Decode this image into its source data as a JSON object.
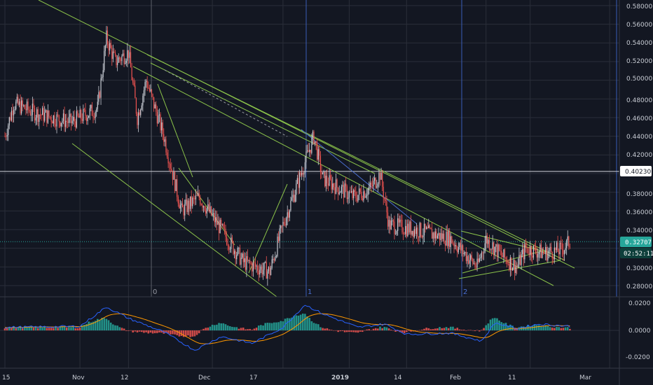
{
  "colors": {
    "background": "#131722",
    "grid": "#2a2e39",
    "up": "#c8ccd4",
    "down": "#ef5350",
    "trendline": "#8bc34a",
    "blue_line": "#3a5db8",
    "macd_line": "#2962ff",
    "signal_line": "#ff9800",
    "hist_pos": "#26a69a",
    "hist_neg": "#ef5350",
    "badge": "#26a69a",
    "badge_dark": "#0e3f3b"
  },
  "price_axis": {
    "ticks": [
      "0.58000",
      "0.56000",
      "0.54000",
      "0.52000",
      "0.50000",
      "0.48000",
      "0.46000",
      "0.44000",
      "0.42000",
      "0.40230",
      "0.38000",
      "0.36000",
      "0.34000",
      "0.32707",
      "0.30000",
      "0.28000"
    ],
    "highlight_level": "0.40230",
    "current_price": "0.32707",
    "countdown": "02:52:11",
    "range": [
      0.27,
      0.585
    ]
  },
  "macd_axis": {
    "ticks": [
      "0.0200",
      "0.0000",
      "-0.0200"
    ],
    "range": [
      -0.026,
      0.022
    ]
  },
  "x_axis": {
    "labels": [
      "15",
      "Nov",
      "12",
      "Dec",
      "17",
      "2019",
      "14",
      "Feb",
      "11",
      "Mar"
    ]
  },
  "markers": [
    "0",
    "1",
    "2"
  ],
  "chart_data": {
    "type": "candlestick",
    "price_series_keypoints": [
      [
        "Oct 15",
        0.44
      ],
      [
        "Oct 17",
        0.475
      ],
      [
        "Oct 22",
        0.465
      ],
      [
        "Oct 30",
        0.455
      ],
      [
        "Nov 5",
        0.47
      ],
      [
        "Nov 7",
        0.545
      ],
      [
        "Nov 9",
        0.52
      ],
      [
        "Nov 12",
        0.53
      ],
      [
        "Nov 14",
        0.46
      ],
      [
        "Nov 16",
        0.5
      ],
      [
        "Nov 20",
        0.44
      ],
      [
        "Nov 24",
        0.36
      ],
      [
        "Nov 28",
        0.375
      ],
      [
        "Dec 3",
        0.34
      ],
      [
        "Dec 8",
        0.305
      ],
      [
        "Dec 14",
        0.295
      ],
      [
        "Dec 17",
        0.345
      ],
      [
        "Dec 20",
        0.385
      ],
      [
        "Dec 24",
        0.44
      ],
      [
        "Dec 26",
        0.395
      ],
      [
        "Jan 2",
        0.375
      ],
      [
        "Jan 6",
        0.385
      ],
      [
        "Jan 8",
        0.4
      ],
      [
        "Jan 10",
        0.345
      ],
      [
        "Jan 16",
        0.34
      ],
      [
        "Jan 24",
        0.33
      ],
      [
        "Jan 30",
        0.3
      ],
      [
        "Feb 1",
        0.33
      ],
      [
        "Feb 5",
        0.31
      ],
      [
        "Feb 8",
        0.3
      ],
      [
        "Feb 10",
        0.32
      ],
      [
        "Feb 14",
        0.315
      ],
      [
        "Feb 18",
        0.318
      ],
      [
        "Feb 20",
        0.327
      ]
    ],
    "macd_keypoints": [
      [
        "Oct 15",
        0.0
      ],
      [
        "Nov 1",
        0.001
      ],
      [
        "Nov 7",
        0.018
      ],
      [
        "Nov 12",
        0.008
      ],
      [
        "Nov 20",
        -0.004
      ],
      [
        "Nov 27",
        -0.02
      ],
      [
        "Dec 3",
        -0.008
      ],
      [
        "Dec 10",
        -0.014
      ],
      [
        "Dec 17",
        0.0
      ],
      [
        "Dec 22",
        0.02
      ],
      [
        "Dec 26",
        0.012
      ],
      [
        "Jan 3",
        0.0
      ],
      [
        "Jan 9",
        0.003
      ],
      [
        "Jan 14",
        -0.006
      ],
      [
        "Jan 24",
        -0.005
      ],
      [
        "Jan 31",
        -0.012
      ],
      [
        "Feb 3",
        0.004
      ],
      [
        "Feb 8",
        -0.001
      ],
      [
        "Feb 13",
        0.003
      ],
      [
        "Feb 20",
        0.001
      ]
    ],
    "horizontal_levels": [
      0.4023,
      0.32707
    ],
    "xlabel": "",
    "ylabel": ""
  }
}
